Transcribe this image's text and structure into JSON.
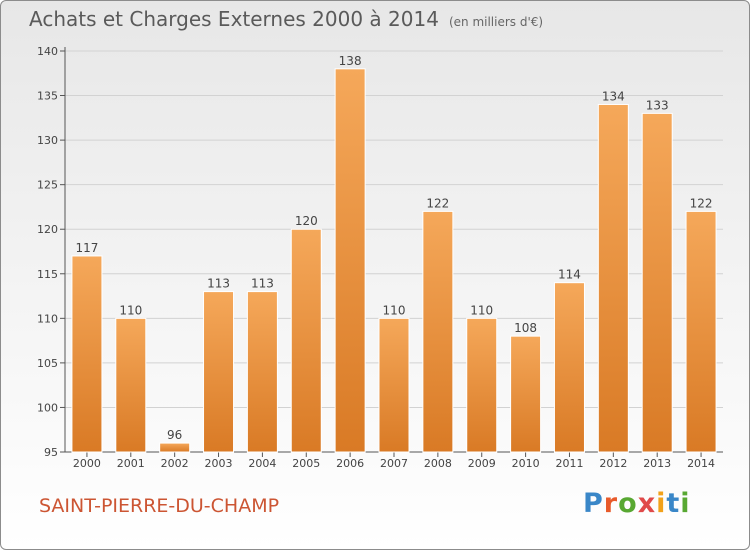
{
  "title": "Achats et Charges Externes 2000 à 2014",
  "subtitle": "(en milliers d'€)",
  "commune": "SAINT-PIERRE-DU-CHAMP",
  "logo": {
    "letters": [
      "P",
      "r",
      "o",
      "x",
      "i",
      "t",
      "i"
    ],
    "colors": [
      "#3a87c8",
      "#e85a2a",
      "#58a832",
      "#e04a4a",
      "#f2a21b",
      "#3a87c8",
      "#58a832"
    ]
  },
  "colors": {
    "bar_light": "#f5a85a",
    "bar_dark": "#d97a25",
    "commune": "#cc5533"
  },
  "chart_data": {
    "type": "bar",
    "categories": [
      "2000",
      "2001",
      "2002",
      "2003",
      "2004",
      "2005",
      "2006",
      "2007",
      "2008",
      "2009",
      "2010",
      "2011",
      "2012",
      "2013",
      "2014"
    ],
    "values": [
      117,
      110,
      96,
      113,
      113,
      120,
      138,
      110,
      122,
      110,
      108,
      114,
      134,
      133,
      122
    ],
    "ylim": [
      95,
      140
    ],
    "yticks": [
      95,
      100,
      105,
      110,
      115,
      120,
      125,
      130,
      135,
      140
    ],
    "grid": true,
    "data_labels": true
  }
}
